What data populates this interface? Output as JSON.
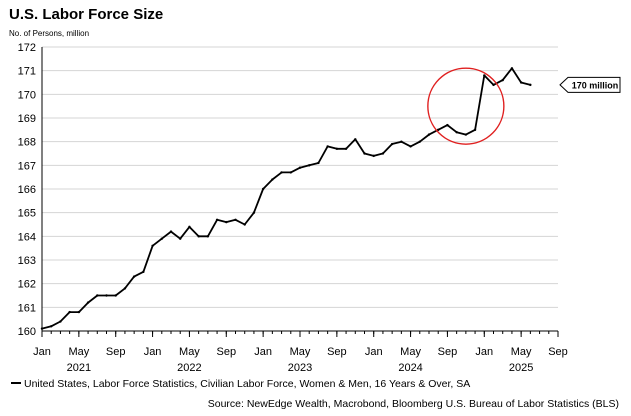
{
  "chart_data": {
    "type": "line",
    "title": "U.S. Labor Force Size",
    "ylabel": "No. of Persons, million",
    "ylim": [
      160,
      172
    ],
    "y_ticks": [
      "160",
      "161",
      "162",
      "163",
      "164",
      "165",
      "166",
      "167",
      "168",
      "169",
      "170",
      "171",
      "172"
    ],
    "xlim": [
      "2021-01",
      "2025-09"
    ],
    "x_ticks": [
      {
        "date": "2021-01",
        "label": "Jan"
      },
      {
        "date": "2021-05",
        "label": "May"
      },
      {
        "date": "2021-09",
        "label": "Sep"
      },
      {
        "date": "2022-01",
        "label": "Jan"
      },
      {
        "date": "2022-05",
        "label": "May"
      },
      {
        "date": "2022-09",
        "label": "Sep"
      },
      {
        "date": "2023-01",
        "label": "Jan"
      },
      {
        "date": "2023-05",
        "label": "May"
      },
      {
        "date": "2023-09",
        "label": "Sep"
      },
      {
        "date": "2024-01",
        "label": "Jan"
      },
      {
        "date": "2024-05",
        "label": "May"
      },
      {
        "date": "2024-09",
        "label": "Sep"
      },
      {
        "date": "2025-01",
        "label": "Jan"
      },
      {
        "date": "2025-05",
        "label": "May"
      },
      {
        "date": "2025-09",
        "label": "Sep"
      }
    ],
    "year_labels": [
      {
        "date": "2021-05",
        "label": "2021"
      },
      {
        "date": "2022-05",
        "label": "2022"
      },
      {
        "date": "2023-05",
        "label": "2023"
      },
      {
        "date": "2024-05",
        "label": "2024"
      },
      {
        "date": "2025-05",
        "label": "2025"
      }
    ],
    "grid": true,
    "legend_position": "bottom-left",
    "series": [
      {
        "name": "United States, Labor Force Statistics, Civilian Labor Force, Women & Men, 16 Years & Over, SA",
        "color": "#000000",
        "x": [
          "2021-01",
          "2021-02",
          "2021-03",
          "2021-04",
          "2021-05",
          "2021-06",
          "2021-07",
          "2021-08",
          "2021-09",
          "2021-10",
          "2021-11",
          "2021-12",
          "2022-01",
          "2022-02",
          "2022-03",
          "2022-04",
          "2022-05",
          "2022-06",
          "2022-07",
          "2022-08",
          "2022-09",
          "2022-10",
          "2022-11",
          "2022-12",
          "2023-01",
          "2023-02",
          "2023-03",
          "2023-04",
          "2023-05",
          "2023-06",
          "2023-07",
          "2023-08",
          "2023-09",
          "2023-10",
          "2023-11",
          "2023-12",
          "2024-01",
          "2024-02",
          "2024-03",
          "2024-04",
          "2024-05",
          "2024-06",
          "2024-07",
          "2024-08",
          "2024-09",
          "2024-10",
          "2024-11",
          "2024-12",
          "2025-01",
          "2025-02",
          "2025-03",
          "2025-04",
          "2025-05",
          "2025-06"
        ],
        "y": [
          160.1,
          160.2,
          160.4,
          160.8,
          160.8,
          161.2,
          161.5,
          161.5,
          161.5,
          161.8,
          162.3,
          162.5,
          163.6,
          163.9,
          164.2,
          163.9,
          164.4,
          164.0,
          164.0,
          164.7,
          164.6,
          164.7,
          164.5,
          165.0,
          166.0,
          166.4,
          166.7,
          166.7,
          166.9,
          167.0,
          167.1,
          167.8,
          167.7,
          167.7,
          168.1,
          167.5,
          167.4,
          167.5,
          167.9,
          168.0,
          167.8,
          168.0,
          168.3,
          168.5,
          168.7,
          168.4,
          168.3,
          168.5,
          170.8,
          170.4,
          170.6,
          171.1,
          170.5,
          170.4
        ]
      }
    ],
    "annotations": [
      {
        "type": "label",
        "text": "170 million",
        "value": 170.4
      },
      {
        "type": "circle",
        "color": "#e02020",
        "center": {
          "date": "2024-11",
          "value": 169.5
        }
      }
    ],
    "source": "Source: NewEdge Wealth, Macrobond, Bloomberg U.S. Bureau of Labor Statistics (BLS)"
  }
}
